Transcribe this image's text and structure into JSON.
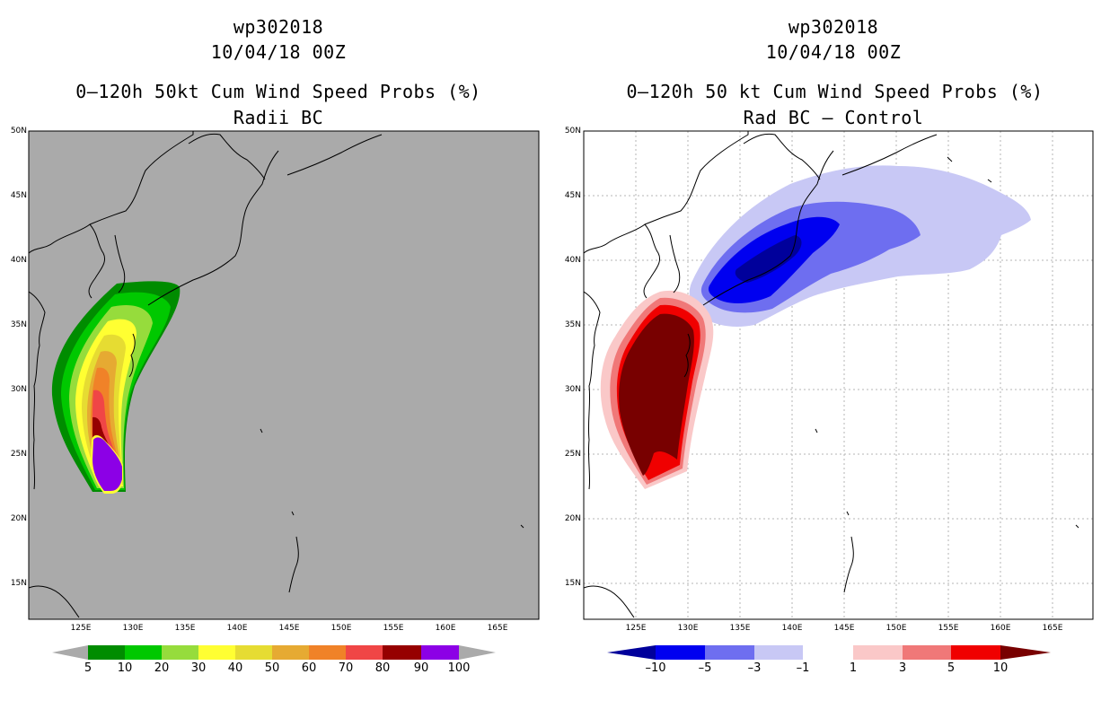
{
  "left_panel": {
    "title_lines": [
      "wp302018",
      "10/04/18 00Z",
      "0–120h 50kt Cum Wind Speed Probs (%)",
      "Radii BC"
    ],
    "colorbar_labels": [
      "5",
      "10",
      "20",
      "30",
      "40",
      "50",
      "60",
      "70",
      "80",
      "90",
      "100"
    ],
    "colors": [
      "#008c00",
      "#00c800",
      "#96dc3c",
      "#ffff32",
      "#e6dc32",
      "#e6aa32",
      "#f08228",
      "#f04646",
      "#960000",
      "#8c00e6"
    ]
  },
  "right_panel": {
    "title_lines": [
      "wp302018",
      "10/04/18 00Z",
      "0–120h 50 kt Cum Wind Speed Probs (%)",
      "Rad BC – Control"
    ],
    "colorbar_labels": [
      "–10",
      "–5",
      "–3",
      "–1",
      "1",
      "3",
      "5",
      "10"
    ],
    "colors": [
      "#00009b",
      "#0000f0",
      "#6e6ef0",
      "#c8c8f5",
      "#ffffff",
      "#fac8c8",
      "#f07878",
      "#f00000",
      "#780000"
    ]
  },
  "lat_labels": [
    "50N",
    "45N",
    "40N",
    "35N",
    "30N",
    "25N",
    "20N",
    "15N"
  ],
  "lon_labels": [
    "125E",
    "130E",
    "135E",
    "140E",
    "145E",
    "150E",
    "155E",
    "160E",
    "165E"
  ]
}
